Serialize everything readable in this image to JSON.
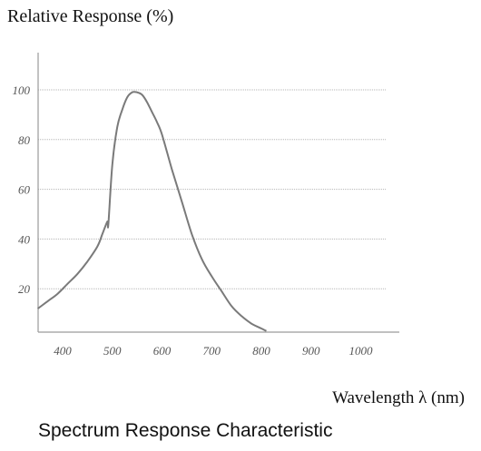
{
  "chart_data": {
    "type": "line",
    "title": "Spectrum Response Characteristic",
    "ylabel": "Relative Response (%)",
    "xlabel": "Wavelength λ (nm)",
    "x_ticks": [
      400,
      500,
      600,
      700,
      800,
      900,
      1000
    ],
    "y_ticks": [
      20,
      40,
      60,
      80,
      100
    ],
    "xlim": [
      350,
      1050
    ],
    "ylim": [
      0,
      110
    ],
    "grid": true,
    "series": [
      {
        "x": [
          350,
          370,
          390,
          410,
          430,
          450,
          470,
          480,
          490,
          492,
          500,
          510,
          520,
          530,
          540,
          550,
          560,
          570,
          580,
          590,
          600,
          620,
          640,
          660,
          680,
          700,
          720,
          740,
          760,
          780,
          800,
          810
        ],
        "values": [
          12,
          15,
          18,
          22,
          26,
          31,
          37,
          42,
          47,
          46,
          70,
          85,
          92,
          97,
          99,
          99,
          98,
          95,
          91,
          87,
          82,
          68,
          55,
          42,
          32,
          25,
          19,
          13,
          9,
          6,
          4,
          3
        ]
      }
    ]
  }
}
